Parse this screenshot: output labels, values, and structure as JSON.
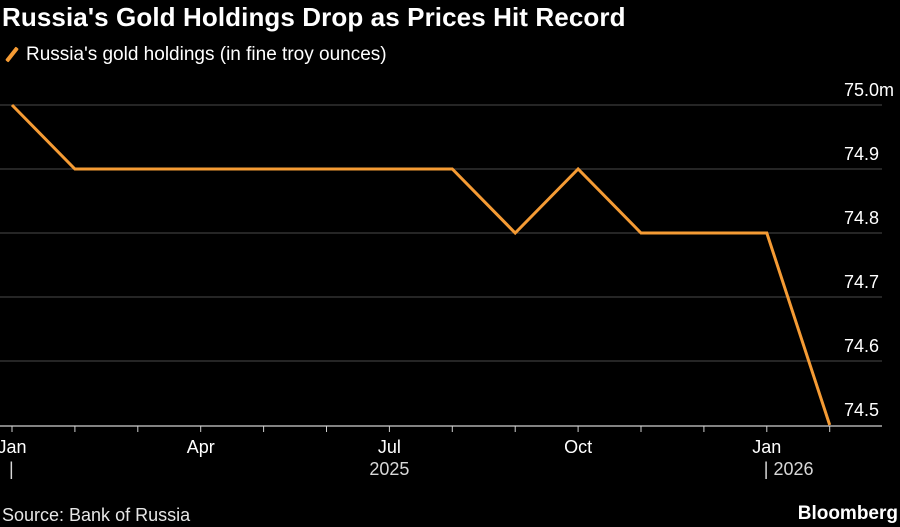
{
  "title": "Russia's Gold Holdings Drop as Prices Hit Record",
  "legend": {
    "label": "Russia's gold holdings (in fine troy ounces)"
  },
  "source": "Source: Bank of Russia",
  "brand": "Bloomberg",
  "colors": {
    "line": "#f59b34",
    "grid": "#4a4a4a",
    "text": "#ffffff",
    "background": "#000000"
  },
  "chart_data": {
    "type": "line",
    "series": [
      {
        "x": [
          "2025-01",
          "2025-02",
          "2025-03",
          "2025-04",
          "2025-05",
          "2025-06",
          "2025-07",
          "2025-08",
          "2025-09",
          "2025-10",
          "2025-11",
          "2025-12",
          "2026-01",
          "2026-02"
        ],
        "values": [
          75.0,
          74.9,
          74.9,
          74.9,
          74.9,
          74.9,
          74.9,
          74.9,
          74.8,
          74.9,
          74.8,
          74.8,
          74.8,
          74.5
        ]
      }
    ],
    "y_ticks": [
      "75.0m",
      "74.9",
      "74.8",
      "74.7",
      "74.6",
      "74.5"
    ],
    "y_tick_values": [
      75.0,
      74.9,
      74.8,
      74.7,
      74.6,
      74.5
    ],
    "ylim": [
      74.5,
      75.0
    ],
    "x_ticks": [
      {
        "label": "Jan",
        "index": 0
      },
      {
        "label": "Apr",
        "index": 3
      },
      {
        "label": "Jul",
        "index": 6
      },
      {
        "label": "Oct",
        "index": 9
      },
      {
        "label": "Jan",
        "index": 12
      }
    ],
    "year_labels": [
      {
        "label": "|",
        "index": 0
      },
      {
        "label": "2025",
        "index": 6
      },
      {
        "label": "| 2026",
        "index": 12
      }
    ],
    "y_axis_position": "right",
    "grid": true,
    "legend_position": "top-left"
  }
}
